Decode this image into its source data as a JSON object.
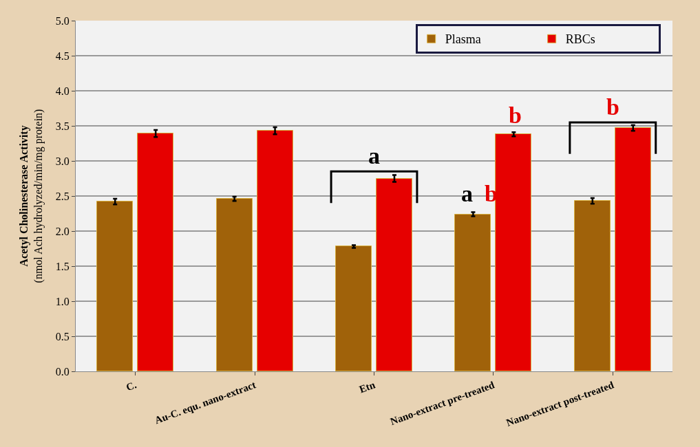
{
  "chart_data": {
    "type": "bar",
    "ylabel": "Acetyl Cholinesterase Activity\n(nmol Ach hydrolyzed/min/mg protein)",
    "categories": [
      "C.",
      "Au-C. equ. nano-extract",
      "Etn",
      "Nano-extract pre-treated",
      "Nano-extract post-treated"
    ],
    "series": [
      {
        "name": "Plasma",
        "color": "#a0620a",
        "values": [
          2.42,
          2.46,
          1.78,
          2.24,
          2.43
        ],
        "errors": [
          0.04,
          0.03,
          0.02,
          0.03,
          0.04
        ]
      },
      {
        "name": "RBCs",
        "color": "#e60000",
        "values": [
          3.39,
          3.43,
          2.75,
          3.38,
          3.47
        ],
        "errors": [
          0.05,
          0.05,
          0.05,
          0.03,
          0.04
        ]
      }
    ],
    "ylim": [
      0,
      5
    ],
    "yticks": [
      {
        "value": 0,
        "label": "0.0"
      },
      {
        "value": 0.5,
        "label": "0.5"
      },
      {
        "value": 1,
        "label": "1.0"
      },
      {
        "value": 1.5,
        "label": "1.5"
      },
      {
        "value": 2,
        "label": "2.0"
      },
      {
        "value": 2.5,
        "label": "2.5"
      },
      {
        "value": 3,
        "label": "3.0"
      },
      {
        "value": 3.5,
        "label": "3.5"
      },
      {
        "value": 4,
        "label": "4.0"
      },
      {
        "value": 4.5,
        "label": "4.5"
      },
      {
        "value": 5,
        "label": "5.0"
      }
    ],
    "grid": "y",
    "legend": "top right",
    "annotations": [
      "a",
      "a",
      "b",
      "b",
      "b"
    ]
  }
}
